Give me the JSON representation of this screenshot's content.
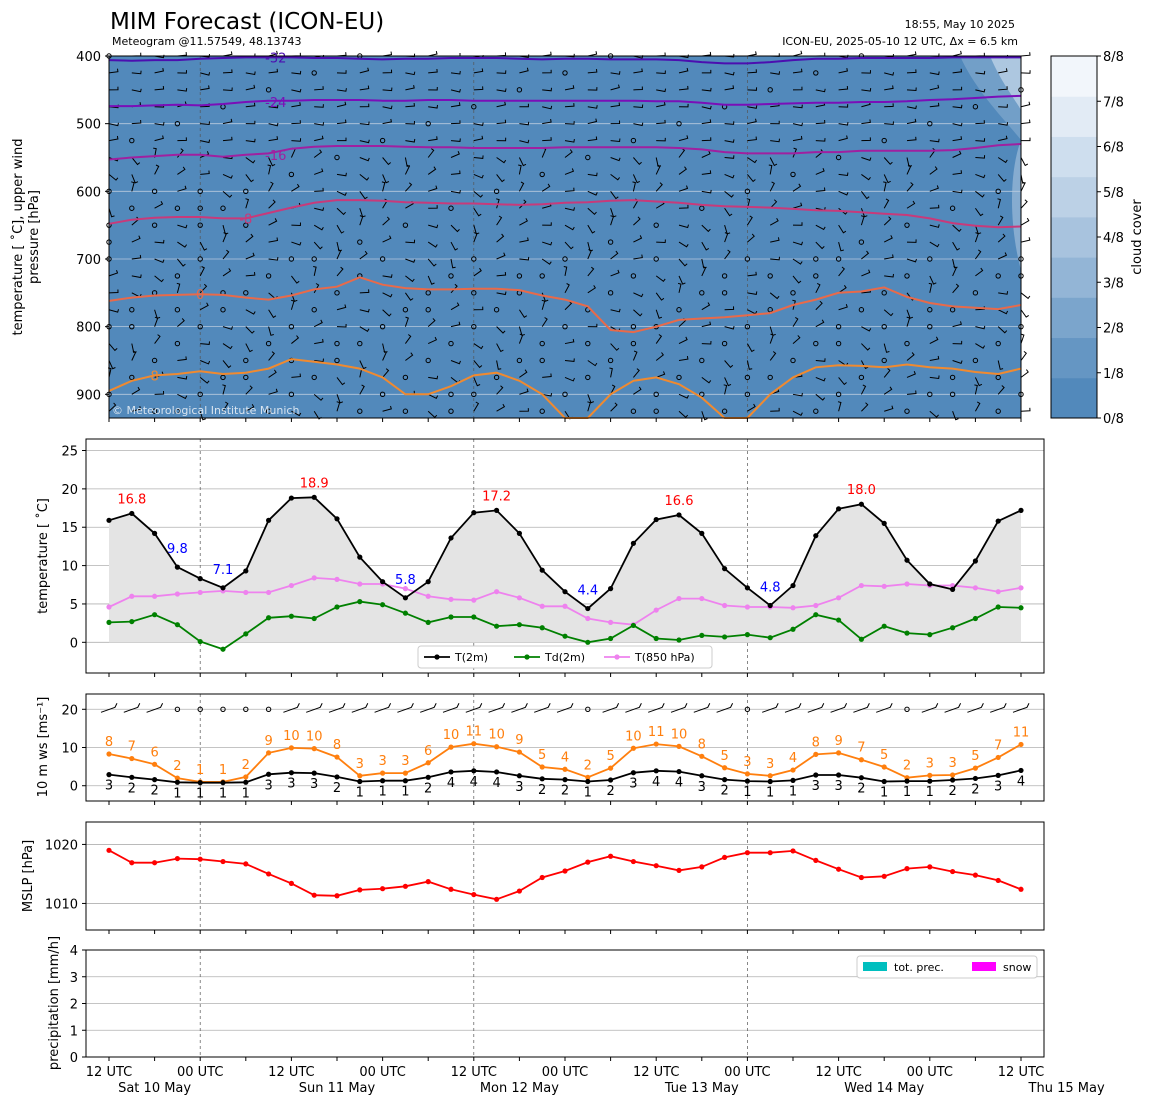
{
  "header": {
    "title": "MIM Forecast (ICON-EU)",
    "subtitle": "Meteogram @11.57549, 48.13743",
    "timestamp": "18:55, May 10 2025",
    "model_info": "ICON-EU, 2025-05-10 12 UTC, Δx = 6.5 km",
    "copyright": "© Meteorological Institute Munich"
  },
  "time_axis": {
    "x_ticks": [
      "12 UTC",
      "00 UTC",
      "12 UTC",
      "00 UTC",
      "12 UTC",
      "00 UTC",
      "12 UTC",
      "00 UTC",
      "12 UTC",
      "00 UTC",
      "12 UTC"
    ],
    "day_labels": [
      "Sat 10 May",
      "Sun 11 May",
      "Mon 12 May",
      "Tue 13 May",
      "Wed 14 May",
      "Thu 15 May"
    ]
  },
  "chart_data": [
    {
      "type": "heatmap",
      "name": "upper-air",
      "ylabel": "temperature [$^\\circ$C], upper wind\npressure [hPa]",
      "ylabel_lines": [
        "temperature [ ˚C], upper wind",
        "pressure [hPa]"
      ],
      "yticks": [
        400,
        500,
        600,
        700,
        800,
        900
      ],
      "ylim": [
        935,
        400
      ],
      "colorbar": {
        "label": "cloud cover",
        "ticks": [
          "0/8",
          "1/8",
          "2/8",
          "3/8",
          "4/8",
          "5/8",
          "6/8",
          "7/8",
          "8/8"
        ],
        "colors": [
          "#5289bb",
          "#6596c3",
          "#7ba5cc",
          "#93b5d6",
          "#a8c3de",
          "#bcd1e6",
          "#cedeee",
          "#e2ebf5",
          "#f2f6fb"
        ]
      },
      "background_color": "#5289bb",
      "isotherms": [
        {
          "label": "-32",
          "color": "#4b0fb0",
          "p": [
            406,
            407,
            406,
            406,
            404,
            403,
            402,
            402,
            402,
            403,
            403,
            404,
            405,
            404,
            404,
            403,
            403,
            403,
            404,
            405,
            404,
            404,
            405,
            405,
            405,
            406,
            409,
            411,
            411,
            409,
            406,
            404,
            404,
            403,
            403,
            403,
            403,
            402,
            402,
            402,
            402
          ]
        },
        {
          "label": "-24",
          "color": "#7a0fb8",
          "p": [
            474,
            474,
            473,
            472,
            473,
            471,
            468,
            466,
            466,
            465,
            465,
            465,
            466,
            466,
            465,
            465,
            466,
            466,
            466,
            466,
            466,
            466,
            466,
            466,
            467,
            467,
            469,
            472,
            472,
            471,
            470,
            469,
            469,
            468,
            468,
            467,
            465,
            464,
            462,
            460,
            459
          ]
        },
        {
          "label": "-16",
          "color": "#a020a0",
          "p": [
            553,
            550,
            548,
            546,
            546,
            549,
            546,
            544,
            537,
            534,
            533,
            533,
            533,
            534,
            535,
            535,
            536,
            536,
            536,
            536,
            535,
            535,
            535,
            535,
            535,
            536,
            538,
            542,
            544,
            544,
            544,
            542,
            542,
            540,
            540,
            540,
            540,
            539,
            536,
            532,
            530
          ]
        },
        {
          "label": "-8",
          "color": "#c83a7a",
          "p": [
            648,
            642,
            639,
            638,
            638,
            640,
            640,
            632,
            624,
            617,
            613,
            613,
            614,
            616,
            617,
            618,
            618,
            619,
            620,
            619,
            617,
            616,
            614,
            613,
            615,
            617,
            620,
            622,
            623,
            624,
            626,
            628,
            629,
            631,
            633,
            635,
            640,
            647,
            651,
            653,
            652
          ]
        },
        {
          "label": "0",
          "color": "#e86a4a",
          "p": [
            762,
            757,
            754,
            753,
            752,
            753,
            757,
            760,
            754,
            745,
            741,
            727,
            738,
            743,
            745,
            745,
            744,
            744,
            746,
            754,
            760,
            770,
            805,
            808,
            800,
            790,
            788,
            786,
            783,
            780,
            768,
            760,
            750,
            748,
            742,
            756,
            765,
            770,
            772,
            774,
            768
          ]
        },
        {
          "label": "8",
          "color": "#f08a30",
          "p": [
            895,
            880,
            872,
            870,
            866,
            870,
            868,
            862,
            848,
            852,
            856,
            862,
            875,
            900,
            900,
            888,
            872,
            868,
            880,
            900,
            935,
            935,
            900,
            880,
            875,
            885,
            905,
            935,
            935,
            900,
            875,
            860,
            857,
            858,
            860,
            856,
            860,
            862,
            867,
            870,
            862
          ]
        }
      ]
    },
    {
      "type": "line",
      "name": "temperature",
      "ylabel": "temperature [ ˚C]",
      "ylim": [
        -4,
        26.5
      ],
      "yticks": [
        0,
        5,
        10,
        15,
        20,
        25
      ],
      "series": [
        {
          "name": "T(2m)",
          "color": "#000000",
          "values": [
            15.9,
            16.8,
            14.2,
            9.8,
            8.3,
            7.1,
            9.3,
            15.9,
            18.8,
            18.9,
            16.1,
            11.1,
            7.9,
            5.8,
            7.9,
            13.6,
            16.9,
            17.2,
            14.2,
            9.4,
            6.6,
            4.4,
            7.0,
            12.9,
            16.0,
            16.6,
            14.2,
            9.6,
            7.1,
            4.8,
            7.4,
            13.9,
            17.4,
            18.0,
            15.5,
            10.7,
            7.6,
            6.9,
            10.6,
            15.8,
            17.2
          ]
        },
        {
          "name": "Td(2m)",
          "color": "#008000",
          "values": [
            2.6,
            2.7,
            3.6,
            2.3,
            0.1,
            -0.9,
            1.1,
            3.2,
            3.4,
            3.1,
            4.6,
            5.3,
            4.9,
            3.8,
            2.6,
            3.3,
            3.3,
            2.1,
            2.3,
            1.9,
            0.8,
            0.0,
            0.5,
            2.2,
            0.5,
            0.3,
            0.9,
            0.7,
            1.0,
            0.6,
            1.7,
            3.6,
            2.9,
            0.4,
            2.1,
            1.2,
            1.0,
            1.9,
            3.1,
            4.6,
            4.5
          ]
        },
        {
          "name": "T(850 hPa)",
          "color": "#ee82ee",
          "values": [
            4.6,
            6.0,
            6.0,
            6.3,
            6.5,
            6.7,
            6.5,
            6.5,
            7.4,
            8.4,
            8.2,
            7.6,
            7.6,
            7.0,
            6.0,
            5.6,
            5.5,
            6.6,
            5.8,
            4.7,
            4.7,
            3.1,
            2.6,
            2.3,
            4.2,
            5.7,
            5.7,
            4.8,
            4.6,
            4.6,
            4.5,
            4.8,
            5.8,
            7.4,
            7.3,
            7.6,
            7.4,
            7.4,
            7.1,
            6.6,
            7.1
          ]
        }
      ],
      "annotations": [
        {
          "i": 1,
          "text": "16.8",
          "kind": "max"
        },
        {
          "i": 3,
          "text": "9.8",
          "kind": "min"
        },
        {
          "i": 5,
          "text": "7.1",
          "kind": "min"
        },
        {
          "i": 9,
          "text": "18.9",
          "kind": "max"
        },
        {
          "i": 13,
          "text": "5.8",
          "kind": "min"
        },
        {
          "i": 17,
          "text": "17.2",
          "kind": "max"
        },
        {
          "i": 21,
          "text": "4.4",
          "kind": "min"
        },
        {
          "i": 25,
          "text": "16.6",
          "kind": "max"
        },
        {
          "i": 29,
          "text": "4.8",
          "kind": "min"
        },
        {
          "i": 33,
          "text": "18.0",
          "kind": "max"
        }
      ],
      "legend": "bottom-center"
    },
    {
      "type": "line",
      "name": "wind",
      "ylabel": "10 m ws [ms⁻¹]",
      "ylim": [
        -4,
        24
      ],
      "yticks": [
        0,
        10,
        20
      ],
      "series": [
        {
          "name": "gust",
          "color": "#ff7f0e",
          "values": [
            8.3,
            7.1,
            5.6,
            2.0,
            1.0,
            1.0,
            2.3,
            8.6,
            9.9,
            9.7,
            7.5,
            2.6,
            3.3,
            3.3,
            6.0,
            10.1,
            11.0,
            10.2,
            8.8,
            4.9,
            4.3,
            2.2,
            4.6,
            9.8,
            10.9,
            10.3,
            7.7,
            4.7,
            3.1,
            2.6,
            4.1,
            8.2,
            8.6,
            6.8,
            4.9,
            2.1,
            2.7,
            2.8,
            4.6,
            7.4,
            10.8
          ],
          "labels": [
            "8",
            "7",
            "6",
            "2",
            "1",
            "1",
            "2",
            "9",
            "10",
            "10",
            "8",
            "3",
            "3",
            "3",
            "6",
            "10",
            "11",
            "10",
            "9",
            "5",
            "4",
            "2",
            "5",
            "10",
            "11",
            "10",
            "8",
            "5",
            "3",
            "3",
            "4",
            "8",
            "9",
            "7",
            "5",
            "2",
            "3",
            "3",
            "5",
            "7",
            "11"
          ]
        },
        {
          "name": "wind speed",
          "color": "#000000",
          "values": [
            2.9,
            2.2,
            1.6,
            0.9,
            0.8,
            0.8,
            0.9,
            3.0,
            3.4,
            3.3,
            2.3,
            1.1,
            1.3,
            1.3,
            2.2,
            3.6,
            3.9,
            3.6,
            2.6,
            1.8,
            1.6,
            1.1,
            1.5,
            3.4,
            3.9,
            3.7,
            2.6,
            1.6,
            1.2,
            1.1,
            1.4,
            2.8,
            2.8,
            2.1,
            1.1,
            1.2,
            1.2,
            1.5,
            1.9,
            2.7,
            4.0
          ],
          "labels": [
            "3",
            "2",
            "2",
            "1",
            "1",
            "1",
            "1",
            "3",
            "3",
            "3",
            "2",
            "1",
            "1",
            "1",
            "2",
            "4",
            "4",
            "4",
            "3",
            "2",
            "2",
            "1",
            "2",
            "3",
            "4",
            "4",
            "3",
            "2",
            "1",
            "1",
            "1",
            "3",
            "3",
            "2",
            "1",
            "1",
            "1",
            "2",
            "2",
            "3",
            "4"
          ]
        }
      ]
    },
    {
      "type": "line",
      "name": "mslp",
      "ylabel": "MSLP [hPa]",
      "ylim": [
        1005.5,
        1023.8
      ],
      "yticks": [
        1010,
        1020
      ],
      "series": [
        {
          "name": "MSLP",
          "color": "#ff0000",
          "values": [
            1019.0,
            1016.9,
            1016.9,
            1017.6,
            1017.5,
            1017.1,
            1016.7,
            1015.0,
            1013.4,
            1011.4,
            1011.3,
            1012.3,
            1012.5,
            1012.9,
            1013.7,
            1012.4,
            1011.5,
            1010.7,
            1012.1,
            1014.4,
            1015.5,
            1017.0,
            1018.0,
            1017.1,
            1016.4,
            1015.6,
            1016.2,
            1017.8,
            1018.6,
            1018.6,
            1018.9,
            1017.3,
            1015.8,
            1014.4,
            1014.6,
            1015.9,
            1016.2,
            1015.4,
            1014.8,
            1013.9,
            1012.4
          ]
        }
      ]
    },
    {
      "type": "bar",
      "name": "precipitation",
      "ylabel": "precipitation [mm/h]",
      "ylim": [
        0,
        4
      ],
      "yticks": [
        0,
        1,
        2,
        3,
        4
      ],
      "series": [
        {
          "name": "tot. prec.",
          "color": "#00bfbf",
          "values": [
            0,
            0,
            0,
            0,
            0,
            0,
            0,
            0,
            0,
            0,
            0,
            0,
            0,
            0,
            0,
            0,
            0,
            0,
            0,
            0,
            0,
            0,
            0,
            0,
            0,
            0,
            0,
            0,
            0,
            0,
            0,
            0,
            0,
            0,
            0,
            0,
            0,
            0,
            0,
            0,
            0
          ]
        },
        {
          "name": "snow",
          "color": "#ff00ff",
          "values": [
            0,
            0,
            0,
            0,
            0,
            0,
            0,
            0,
            0,
            0,
            0,
            0,
            0,
            0,
            0,
            0,
            0,
            0,
            0,
            0,
            0,
            0,
            0,
            0,
            0,
            0,
            0,
            0,
            0,
            0,
            0,
            0,
            0,
            0,
            0,
            0,
            0,
            0,
            0,
            0,
            0
          ]
        }
      ],
      "legend": "top-right"
    }
  ]
}
